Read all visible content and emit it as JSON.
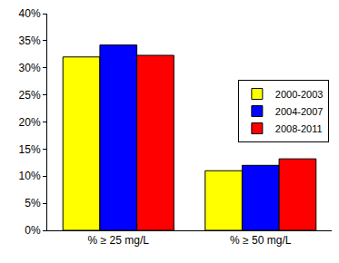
{
  "chart_data": {
    "type": "bar",
    "categories": [
      "% ≥ 25 mg/L",
      "% ≥ 50 mg/L"
    ],
    "series": [
      {
        "name": "2000-2003",
        "color": "#ffff00",
        "values": [
          32,
          11
        ]
      },
      {
        "name": "2004-2007",
        "color": "#0000ff",
        "values": [
          34.2,
          12
        ]
      },
      {
        "name": "2008-2011",
        "color": "#ff0000",
        "values": [
          32.3,
          13.2
        ]
      }
    ],
    "ylim": [
      0,
      40
    ],
    "yticks": [
      {
        "value": 0,
        "label": "0%"
      },
      {
        "value": 5,
        "label": "5%"
      },
      {
        "value": 10,
        "label": "10%"
      },
      {
        "value": 15,
        "label": "15%"
      },
      {
        "value": 20,
        "label": "20%"
      },
      {
        "value": 25,
        "label": "25%"
      },
      {
        "value": 30,
        "label": "30%"
      },
      {
        "value": 35,
        "label": "35%"
      },
      {
        "value": 40,
        "label": "40%"
      }
    ],
    "grid": false,
    "legend": "right"
  }
}
